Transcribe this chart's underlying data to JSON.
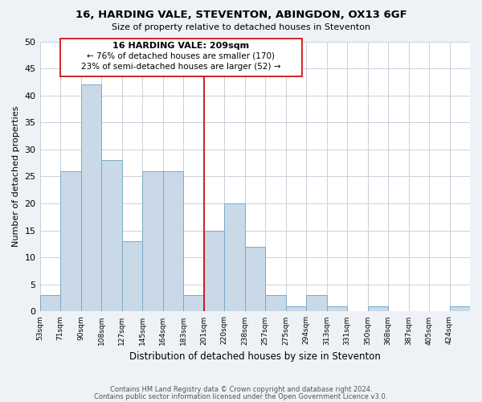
{
  "title": "16, HARDING VALE, STEVENTON, ABINGDON, OX13 6GF",
  "subtitle": "Size of property relative to detached houses in Steventon",
  "xlabel": "Distribution of detached houses by size in Steventon",
  "ylabel": "Number of detached properties",
  "bin_labels": [
    "53sqm",
    "71sqm",
    "90sqm",
    "108sqm",
    "127sqm",
    "145sqm",
    "164sqm",
    "183sqm",
    "201sqm",
    "220sqm",
    "238sqm",
    "257sqm",
    "275sqm",
    "294sqm",
    "313sqm",
    "331sqm",
    "350sqm",
    "368sqm",
    "387sqm",
    "405sqm",
    "424sqm"
  ],
  "bar_heights": [
    3,
    26,
    42,
    28,
    13,
    26,
    26,
    3,
    15,
    20,
    12,
    3,
    1,
    3,
    1,
    0,
    1,
    0,
    0,
    0,
    1
  ],
  "bar_color": "#c9d9e8",
  "bar_edge_color": "#7aaac8",
  "ylim": [
    0,
    50
  ],
  "yticks": [
    0,
    5,
    10,
    15,
    20,
    25,
    30,
    35,
    40,
    45,
    50
  ],
  "vline_x_idx": 8,
  "vline_color": "#cc0000",
  "annotation_title": "16 HARDING VALE: 209sqm",
  "annotation_line1": "← 76% of detached houses are smaller (170)",
  "annotation_line2": "23% of semi-detached houses are larger (52) →",
  "footer1": "Contains HM Land Registry data © Crown copyright and database right 2024.",
  "footer2": "Contains public sector information licensed under the Open Government Licence v3.0.",
  "background_color": "#eef2f7",
  "plot_bg_color": "#ffffff",
  "grid_color": "#c8d0da"
}
